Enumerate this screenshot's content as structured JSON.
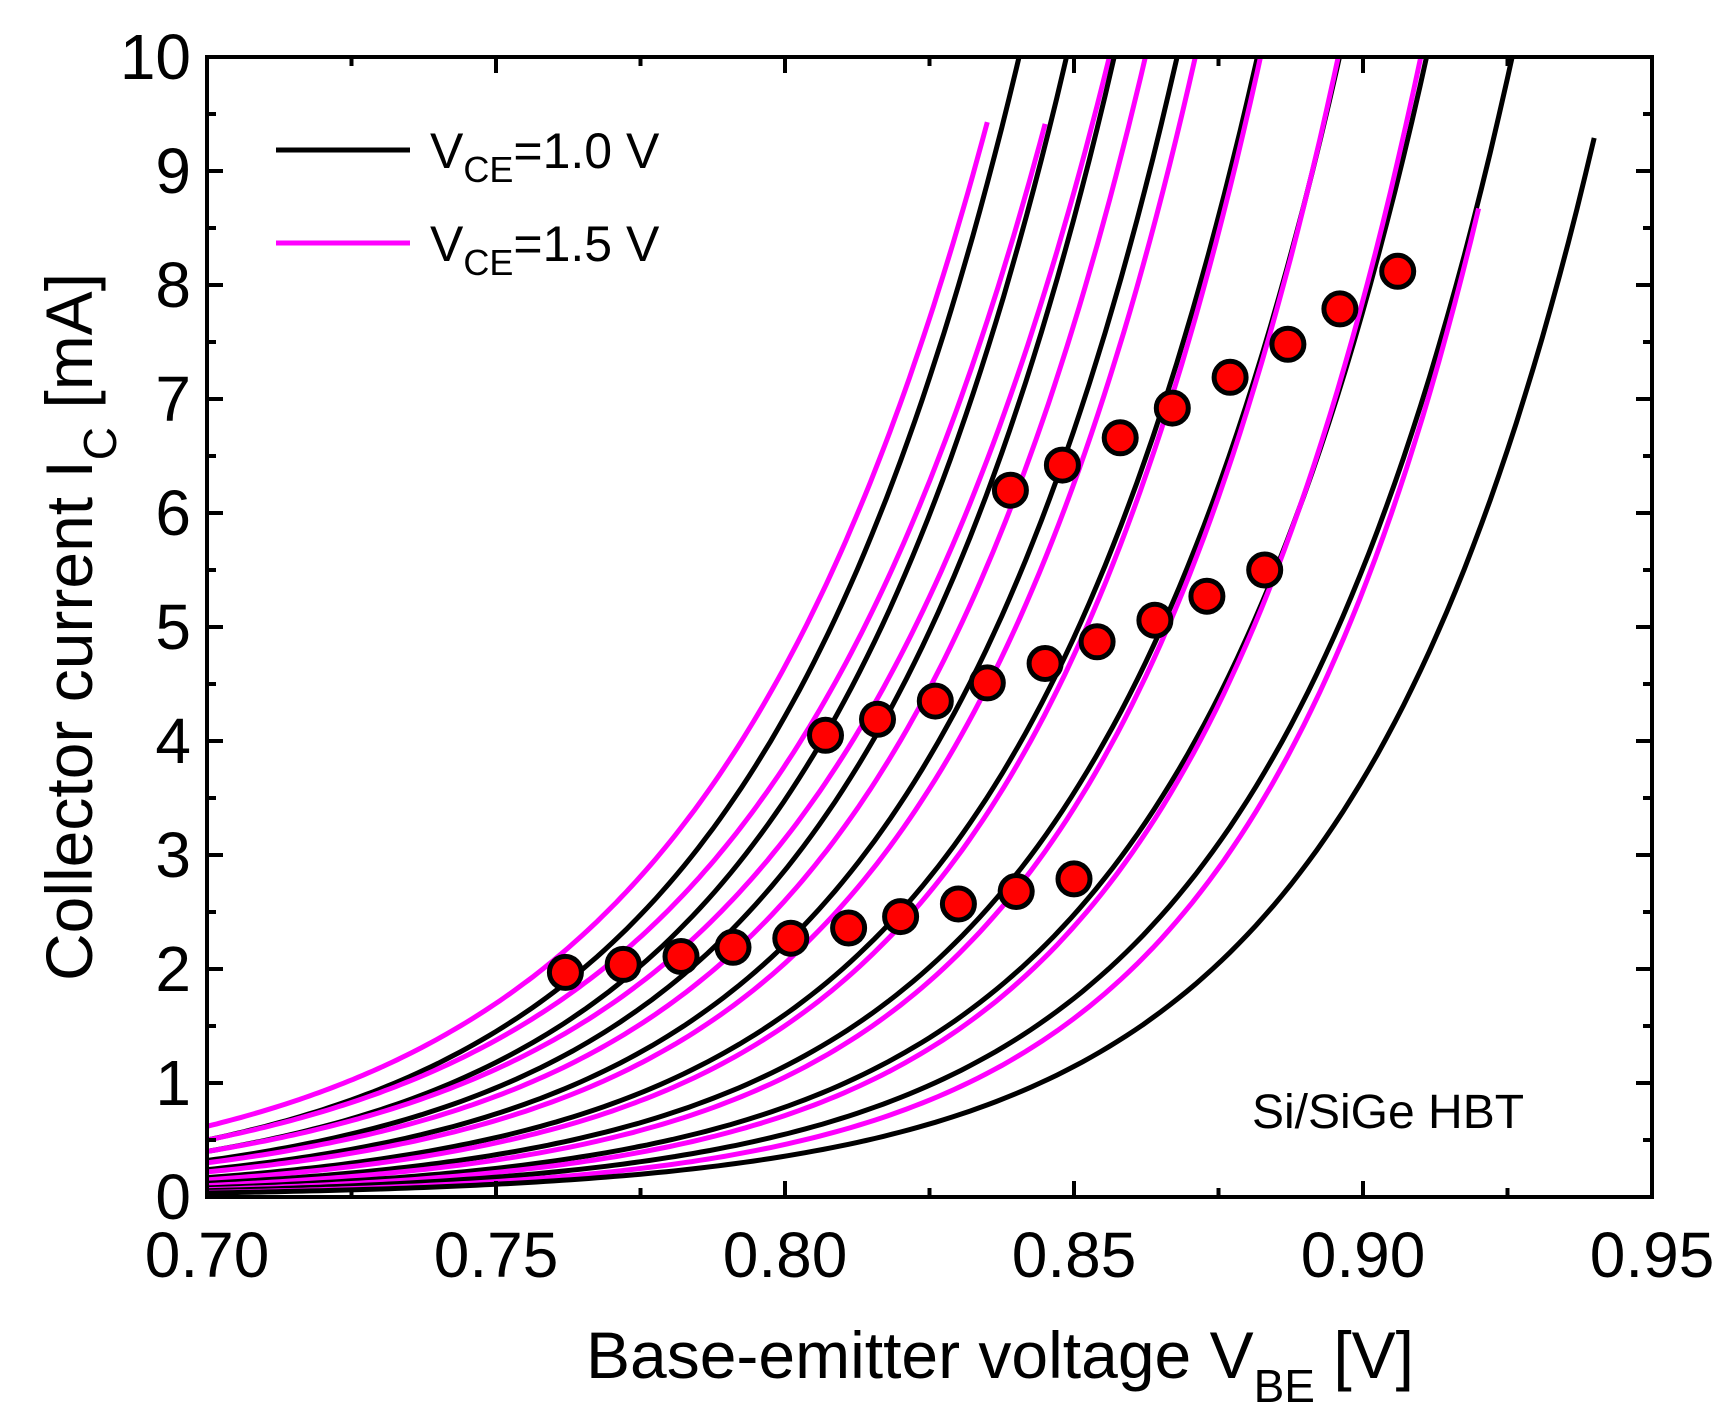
{
  "chart_data": {
    "type": "line",
    "title": "",
    "xlabel": {
      "main": "Base-emitter voltage V",
      "sub": "BE",
      "unit": " [V]"
    },
    "ylabel": {
      "main": "Collector current I",
      "sub": "C",
      "unit": " [mA]"
    },
    "xlim": [
      0.7,
      0.95
    ],
    "ylim": [
      0,
      10
    ],
    "x_ticks": [
      0.7,
      0.75,
      0.8,
      0.85,
      0.9,
      0.95
    ],
    "x_tick_labels": [
      "0.70",
      "0.75",
      "0.80",
      "0.85",
      "0.90",
      "0.95"
    ],
    "y_ticks": [
      0,
      1,
      2,
      3,
      4,
      5,
      6,
      7,
      8,
      9,
      10
    ],
    "y_tick_labels": [
      "0",
      "1",
      "2",
      "3",
      "4",
      "5",
      "6",
      "7",
      "8",
      "9",
      "10"
    ],
    "grid": false,
    "legend_position": "top-left",
    "legend": [
      {
        "prefix": "V",
        "sub": "CE",
        "suffix": "=1.0 V",
        "color": "#000000"
      },
      {
        "prefix": "V",
        "sub": "CE",
        "suffix": "=1.5 V",
        "color": "#ff00ff"
      }
    ],
    "annotation": "Si/SiGe HBT",
    "series_model": "I = I0 * exp((V - 0.70) / Vt)",
    "series": [
      {
        "name": "V_CE=1.5 V curve 1",
        "color": "#ff00ff",
        "I0": 0.62,
        "Vt": 0.0496,
        "x_end": 0.835
      },
      {
        "name": "V_CE=1.0 V curve 1",
        "color": "#000000",
        "I0": 0.5,
        "Vt": 0.0469,
        "x_end": 0.9
      },
      {
        "name": "V_CE=1.5 V curve 2",
        "color": "#ff00ff",
        "I0": 0.5,
        "Vt": 0.0494,
        "x_end": 0.845
      },
      {
        "name": "V_CE=1.0 V curve 2",
        "color": "#000000",
        "I0": 0.4,
        "Vt": 0.0462,
        "x_end": 0.91
      },
      {
        "name": "V_CE=1.5 V curve 3",
        "color": "#ff00ff",
        "I0": 0.4,
        "Vt": 0.0485,
        "x_end": 0.86
      },
      {
        "name": "V_CE=1.0 V curve 3",
        "color": "#000000",
        "I0": 0.32,
        "Vt": 0.0456,
        "x_end": 0.92
      },
      {
        "name": "V_CE=1.5 V curve 4",
        "color": "#ff00ff",
        "I0": 0.3,
        "Vt": 0.0463,
        "x_end": 0.87
      },
      {
        "name": "V_CE=1.0 V curve 4",
        "color": "#000000",
        "I0": 0.24,
        "Vt": 0.045,
        "x_end": 0.92
      },
      {
        "name": "V_CE=1.5 V curve 5",
        "color": "#ff00ff",
        "I0": 0.22,
        "Vt": 0.0448,
        "x_end": 0.88
      },
      {
        "name": "V_CE=1.0 V curve 5",
        "color": "#000000",
        "I0": 0.17,
        "Vt": 0.0446,
        "x_end": 0.92
      },
      {
        "name": "V_CE=1.5 V curve 6",
        "color": "#ff00ff",
        "I0": 0.15,
        "Vt": 0.0434,
        "x_end": 0.89
      },
      {
        "name": "V_CE=1.0 V curve 6",
        "color": "#000000",
        "I0": 0.12,
        "Vt": 0.0443,
        "x_end": 0.93
      },
      {
        "name": "V_CE=1.5 V curve 7",
        "color": "#ff00ff",
        "I0": 0.1,
        "Vt": 0.0425,
        "x_end": 0.9
      },
      {
        "name": "V_CE=1.0 V curve 7",
        "color": "#000000",
        "I0": 0.08,
        "Vt": 0.0437,
        "x_end": 0.93
      },
      {
        "name": "V_CE=1.5 V curve 8",
        "color": "#ff00ff",
        "I0": 0.065,
        "Vt": 0.0417,
        "x_end": 0.91
      },
      {
        "name": "V_CE=1.0 V curve 8",
        "color": "#000000",
        "I0": 0.055,
        "Vt": 0.0434,
        "x_end": 0.94
      },
      {
        "name": "V_CE=1.5 V curve 9",
        "color": "#ff00ff",
        "I0": 0.04,
        "Vt": 0.0409,
        "x_end": 0.92
      },
      {
        "name": "V_CE=1.0 V curve 9",
        "color": "#000000",
        "I0": 0.035,
        "Vt": 0.043,
        "x_end": 0.94
      }
    ],
    "markers": {
      "color": "#ff0000",
      "edge_color": "#000000",
      "points": [
        [
          0.762,
          1.97
        ],
        [
          0.772,
          2.04
        ],
        [
          0.782,
          2.11
        ],
        [
          0.791,
          2.19
        ],
        [
          0.801,
          2.27
        ],
        [
          0.811,
          2.36
        ],
        [
          0.82,
          2.46
        ],
        [
          0.83,
          2.57
        ],
        [
          0.84,
          2.68
        ],
        [
          0.85,
          2.79
        ],
        [
          0.807,
          4.05
        ],
        [
          0.816,
          4.19
        ],
        [
          0.826,
          4.35
        ],
        [
          0.835,
          4.51
        ],
        [
          0.845,
          4.68
        ],
        [
          0.854,
          4.87
        ],
        [
          0.864,
          5.06
        ],
        [
          0.873,
          5.27
        ],
        [
          0.883,
          5.5
        ],
        [
          0.839,
          6.2
        ],
        [
          0.848,
          6.42
        ],
        [
          0.858,
          6.66
        ],
        [
          0.867,
          6.92
        ],
        [
          0.877,
          7.19
        ],
        [
          0.887,
          7.48
        ],
        [
          0.896,
          7.79
        ],
        [
          0.906,
          8.12
        ]
      ]
    }
  }
}
